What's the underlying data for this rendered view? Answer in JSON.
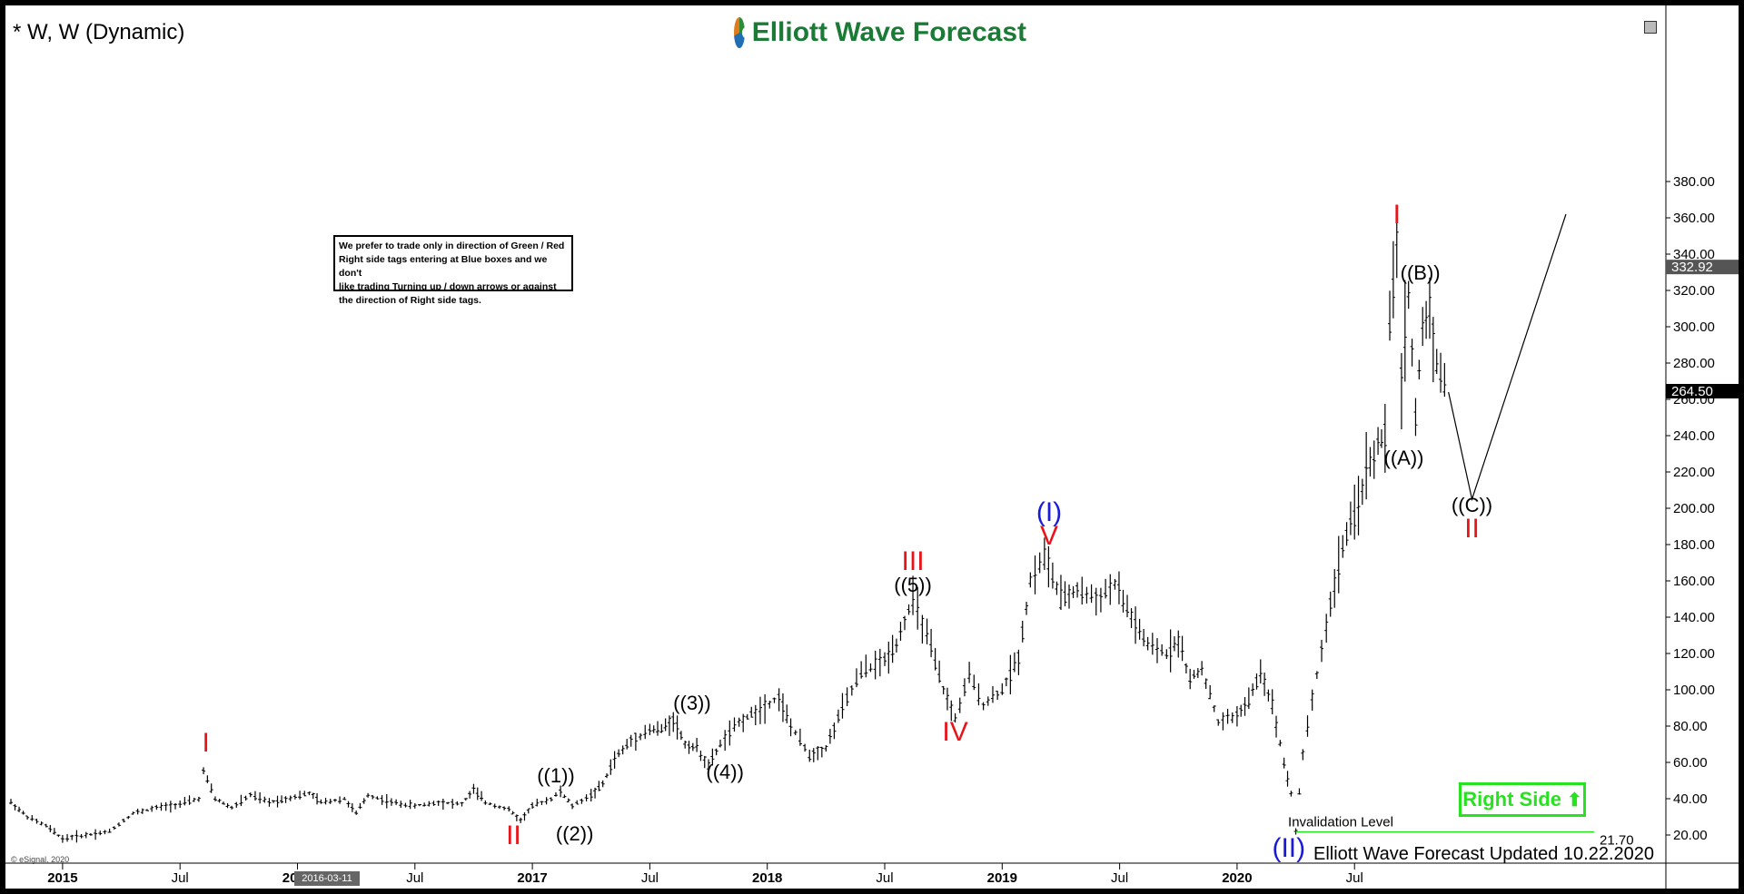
{
  "title": "* W, W (Dynamic)",
  "logo": {
    "text": "Elliott Wave Forecast"
  },
  "note_lines": [
    "We prefer to trade only in direction of Green / Red",
    "Right side tags entering at Blue boxes and we don't",
    "like trading Turning up / down arrows or against",
    "the direction of Right side tags."
  ],
  "right_side_label": "Right Side",
  "updated_text": "Elliott Wave Forecast Updated 10.22.2020",
  "esignal_text": "© eSignal, 2020",
  "cursor_date": "2016-03-11",
  "price_tags": {
    "current": "264.50",
    "high": "332.92"
  },
  "invalidation": {
    "label": "Invalidation Level",
    "value": 21.7,
    "value_label": "21.70"
  },
  "colors": {
    "red": "#e8141a",
    "blue": "#1a1adb",
    "black": "#000000",
    "green": "#27e21e"
  },
  "chart_data": {
    "type": "bar",
    "ylim": [
      10,
      390
    ],
    "y_ticks": [
      "20.00",
      "40.00",
      "60.00",
      "80.00",
      "100.00",
      "120.00",
      "140.00",
      "160.00",
      "180.00",
      "200.00",
      "220.00",
      "240.00",
      "260.00",
      "280.00",
      "300.00",
      "320.00",
      "340.00",
      "360.00",
      "380.00"
    ],
    "x_ticks": [
      {
        "label": "2015",
        "t": 2015.0,
        "bold": true
      },
      {
        "label": "Jul",
        "t": 2015.5,
        "bold": false
      },
      {
        "label": "2016",
        "t": 2016.0,
        "bold": true
      },
      {
        "label": "Jul",
        "t": 2016.5,
        "bold": false
      },
      {
        "label": "2017",
        "t": 2017.0,
        "bold": true
      },
      {
        "label": "Jul",
        "t": 2017.5,
        "bold": false
      },
      {
        "label": "2018",
        "t": 2018.0,
        "bold": true
      },
      {
        "label": "Jul",
        "t": 2018.5,
        "bold": false
      },
      {
        "label": "2019",
        "t": 2019.0,
        "bold": true
      },
      {
        "label": "Jul",
        "t": 2019.5,
        "bold": false
      },
      {
        "label": "2020",
        "t": 2020.0,
        "bold": true
      },
      {
        "label": "Jul",
        "t": 2020.5,
        "bold": false
      }
    ],
    "price_path": [
      [
        2014.78,
        38
      ],
      [
        2014.85,
        30
      ],
      [
        2014.93,
        25
      ],
      [
        2015.0,
        18
      ],
      [
        2015.1,
        20
      ],
      [
        2015.2,
        22
      ],
      [
        2015.3,
        32
      ],
      [
        2015.4,
        35
      ],
      [
        2015.5,
        37
      ],
      [
        2015.58,
        40
      ],
      [
        2015.6,
        55
      ],
      [
        2015.65,
        40
      ],
      [
        2015.72,
        35
      ],
      [
        2015.8,
        42
      ],
      [
        2015.88,
        38
      ],
      [
        2015.95,
        40
      ],
      [
        2016.05,
        43
      ],
      [
        2016.1,
        38
      ],
      [
        2016.2,
        40
      ],
      [
        2016.25,
        32
      ],
      [
        2016.3,
        42
      ],
      [
        2016.4,
        38
      ],
      [
        2016.5,
        36
      ],
      [
        2016.6,
        38
      ],
      [
        2016.7,
        37
      ],
      [
        2016.75,
        45
      ],
      [
        2016.8,
        38
      ],
      [
        2016.9,
        34
      ],
      [
        2016.95,
        28
      ],
      [
        2017.0,
        36
      ],
      [
        2017.08,
        40
      ],
      [
        2017.12,
        44
      ],
      [
        2017.17,
        36
      ],
      [
        2017.25,
        42
      ],
      [
        2017.3,
        48
      ],
      [
        2017.35,
        62
      ],
      [
        2017.42,
        72
      ],
      [
        2017.5,
        78
      ],
      [
        2017.55,
        78
      ],
      [
        2017.6,
        84
      ],
      [
        2017.65,
        70
      ],
      [
        2017.7,
        68
      ],
      [
        2017.75,
        58
      ],
      [
        2017.8,
        70
      ],
      [
        2017.88,
        82
      ],
      [
        2017.95,
        88
      ],
      [
        2018.05,
        96
      ],
      [
        2018.1,
        80
      ],
      [
        2018.18,
        64
      ],
      [
        2018.25,
        68
      ],
      [
        2018.32,
        90
      ],
      [
        2018.4,
        110
      ],
      [
        2018.5,
        116
      ],
      [
        2018.55,
        126
      ],
      [
        2018.62,
        150
      ],
      [
        2018.68,
        130
      ],
      [
        2018.75,
        100
      ],
      [
        2018.8,
        84
      ],
      [
        2018.86,
        108
      ],
      [
        2018.92,
        92
      ],
      [
        2019.0,
        100
      ],
      [
        2019.07,
        118
      ],
      [
        2019.12,
        160
      ],
      [
        2019.18,
        174
      ],
      [
        2019.25,
        150
      ],
      [
        2019.32,
        155
      ],
      [
        2019.4,
        150
      ],
      [
        2019.48,
        158
      ],
      [
        2019.55,
        140
      ],
      [
        2019.62,
        124
      ],
      [
        2019.7,
        120
      ],
      [
        2019.75,
        128
      ],
      [
        2019.8,
        105
      ],
      [
        2019.85,
        112
      ],
      [
        2019.92,
        82
      ],
      [
        2020.0,
        86
      ],
      [
        2020.05,
        94
      ],
      [
        2020.1,
        110
      ],
      [
        2020.15,
        92
      ],
      [
        2020.2,
        60
      ],
      [
        2020.23,
        43
      ],
      [
        2020.25,
        22
      ],
      [
        2020.28,
        65
      ],
      [
        2020.32,
        95
      ],
      [
        2020.38,
        135
      ],
      [
        2020.45,
        180
      ],
      [
        2020.5,
        195
      ],
      [
        2020.55,
        220
      ],
      [
        2020.6,
        235
      ],
      [
        2020.63,
        240
      ],
      [
        2020.65,
        300
      ],
      [
        2020.68,
        345
      ],
      [
        2020.7,
        270
      ],
      [
        2020.73,
        320
      ],
      [
        2020.76,
        250
      ],
      [
        2020.79,
        300
      ],
      [
        2020.82,
        310
      ],
      [
        2020.85,
        280
      ],
      [
        2020.9,
        262
      ]
    ],
    "projection": [
      [
        2020.9,
        264
      ],
      [
        2021.0,
        205
      ],
      [
        2021.4,
        362
      ]
    ],
    "labels": [
      {
        "text": "I",
        "t": 2015.61,
        "v": 66,
        "color": "red"
      },
      {
        "text": "II",
        "t": 2016.92,
        "v": 15,
        "color": "red"
      },
      {
        "text": "((1))",
        "t": 2017.1,
        "v": 49,
        "color": "black"
      },
      {
        "text": "((2))",
        "t": 2017.18,
        "v": 17,
        "color": "black"
      },
      {
        "text": "((3))",
        "t": 2017.68,
        "v": 89,
        "color": "black"
      },
      {
        "text": "((4))",
        "t": 2017.82,
        "v": 51,
        "color": "black"
      },
      {
        "text": "III",
        "t": 2018.62,
        "v": 166,
        "color": "red"
      },
      {
        "text": "((5))",
        "t": 2018.62,
        "v": 154,
        "color": "black"
      },
      {
        "text": "IV",
        "t": 2018.8,
        "v": 72,
        "color": "red"
      },
      {
        "text": "(I)",
        "t": 2019.2,
        "v": 193,
        "color": "blue"
      },
      {
        "text": "V",
        "t": 2019.2,
        "v": 180,
        "color": "red"
      },
      {
        "text": "(II)",
        "t": 2020.22,
        "v": 8,
        "color": "blue"
      },
      {
        "text": "I",
        "t": 2020.68,
        "v": 357,
        "color": "red"
      },
      {
        "text": "((B))",
        "t": 2020.78,
        "v": 326,
        "color": "black"
      },
      {
        "text": "((A))",
        "t": 2020.71,
        "v": 224,
        "color": "black"
      },
      {
        "text": "((C))",
        "t": 2021.0,
        "v": 198,
        "color": "black"
      },
      {
        "text": "II",
        "t": 2021.0,
        "v": 184,
        "color": "red"
      }
    ]
  }
}
